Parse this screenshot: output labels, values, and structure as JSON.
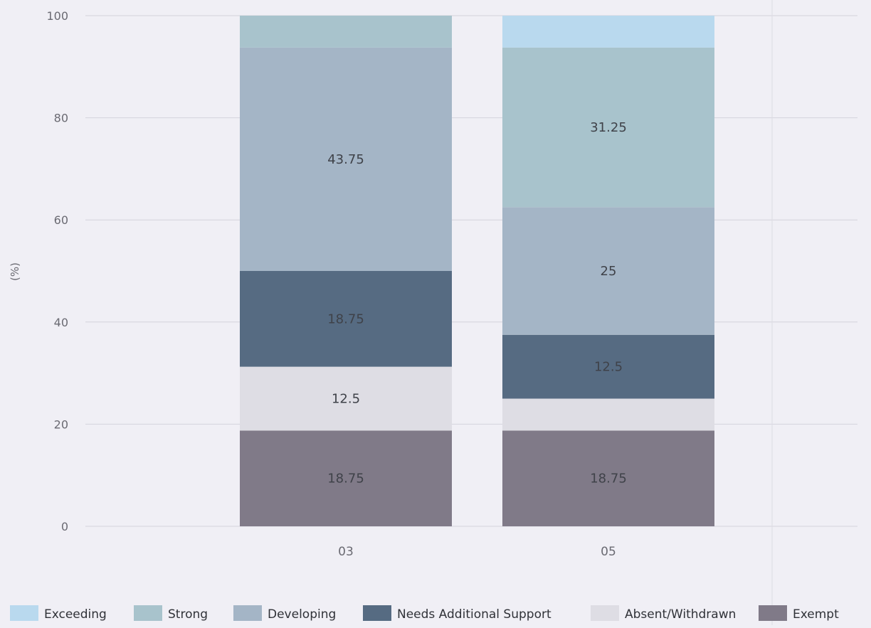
{
  "chart_data": {
    "type": "bar",
    "stacked": true,
    "categories": [
      "03",
      "05"
    ],
    "series": [
      {
        "name": "Exceeding",
        "color": "#b9d9ee",
        "values": [
          0,
          6.25
        ],
        "labels": [
          "",
          ""
        ]
      },
      {
        "name": "Strong",
        "color": "#a8c3cc",
        "values": [
          6.25,
          31.25
        ],
        "labels": [
          "",
          "31.25"
        ]
      },
      {
        "name": "Developing",
        "color": "#a4b5c6",
        "values": [
          43.75,
          25
        ],
        "labels": [
          "43.75",
          "25"
        ]
      },
      {
        "name": "Needs Additional Support",
        "color": "#566b82",
        "values": [
          18.75,
          12.5
        ],
        "labels": [
          "18.75",
          "12.5"
        ]
      },
      {
        "name": "Absent/Withdrawn",
        "color": "#dedde4",
        "values": [
          12.5,
          6.25
        ],
        "labels": [
          "12.5",
          ""
        ]
      },
      {
        "name": "Exempt",
        "color": "#807a88",
        "values": [
          18.75,
          18.75
        ],
        "labels": [
          "18.75",
          "18.75"
        ]
      }
    ],
    "stack_order_bottom_to_top": [
      "Exempt",
      "Absent/Withdrawn",
      "Needs Additional Support",
      "Developing",
      "Strong",
      "Exceeding"
    ],
    "ylabel": "(%)",
    "yticks": [
      "0",
      "20",
      "40",
      "60",
      "80",
      "100"
    ],
    "ylim": [
      0,
      100
    ],
    "grid": true,
    "legend_position": "bottom"
  }
}
